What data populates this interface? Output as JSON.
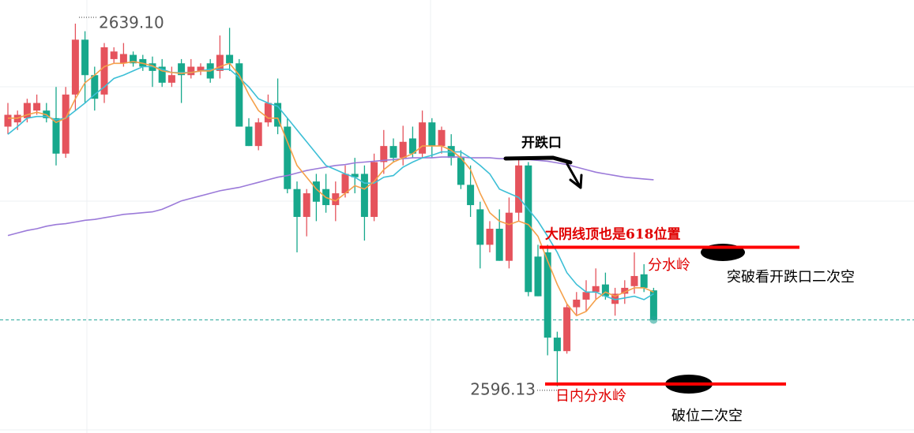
{
  "chart_data": {
    "type": "candlestick",
    "ylim": [
      2590.6,
      2641.9
    ],
    "up_color": "#e5535c",
    "down_color": "#17a88c",
    "open": [
      2626.9,
      2627.4,
      2627.9,
      2628.8,
      2628.8,
      2627.9,
      2623.7,
      2630.7,
      2637.2,
      2633.0,
      2630.7,
      2634.9,
      2634.4,
      2635.4,
      2634.9,
      2634.4,
      2634.0,
      2632.1,
      2634.4,
      2633.0,
      2633.5,
      2634.4,
      2633.5,
      2635.4,
      2634.4,
      2626.9,
      2624.6,
      2627.4,
      2629.7,
      2626.9,
      2619.5,
      2616.2,
      2620.4,
      2619.5,
      2617.6,
      2619.0,
      2621.3,
      2621.3,
      2616.2,
      2622.7,
      2624.6,
      2623.2,
      2625.5,
      2623.7,
      2627.4,
      2624.6,
      2624.6,
      2623.2,
      2620.0,
      2617.1,
      2612.9,
      2614.8,
      2611.0,
      2616.7,
      2622.3,
      2611.5,
      2612.0,
      2601.9,
      2600.3,
      2605.5,
      2606.4,
      2607.3,
      2608.2,
      2605.9,
      2607.1,
      2608.0,
      2609.4,
      2607.5
    ],
    "high": [
      2629.7,
      2628.8,
      2630.2,
      2630.7,
      2629.7,
      2631.6,
      2631.6,
      2639.1,
      2638.2,
      2634.0,
      2636.8,
      2636.3,
      2636.8,
      2635.8,
      2635.4,
      2635.2,
      2634.9,
      2634.0,
      2634.9,
      2634.9,
      2634.4,
      2634.9,
      2637.7,
      2638.6,
      2634.9,
      2627.9,
      2627.9,
      2630.7,
      2632.6,
      2627.9,
      2620.4,
      2619.5,
      2621.3,
      2621.3,
      2620.4,
      2622.3,
      2623.2,
      2622.3,
      2623.7,
      2626.5,
      2625.5,
      2627.0,
      2626.9,
      2628.8,
      2627.9,
      2626.9,
      2626.0,
      2624.1,
      2622.3,
      2618.0,
      2615.7,
      2617.1,
      2618.5,
      2623.2,
      2622.7,
      2612.9,
      2612.9,
      2602.6,
      2605.9,
      2607.3,
      2608.7,
      2610.1,
      2609.6,
      2607.8,
      2608.7,
      2612.0,
      2610.6,
      2607.8
    ],
    "low": [
      2626.0,
      2626.5,
      2627.4,
      2628.3,
      2627.4,
      2622.3,
      2623.2,
      2628.8,
      2629.7,
      2628.8,
      2629.7,
      2634.4,
      2634.0,
      2634.0,
      2633.5,
      2631.6,
      2631.6,
      2631.6,
      2629.7,
      2632.6,
      2633.0,
      2632.1,
      2632.6,
      2633.5,
      2626.9,
      2624.6,
      2624.1,
      2626.9,
      2626.0,
      2619.0,
      2612.0,
      2613.9,
      2615.7,
      2616.7,
      2615.7,
      2618.5,
      2619.0,
      2613.4,
      2615.7,
      2621.3,
      2622.7,
      2622.3,
      2623.2,
      2623.2,
      2623.2,
      2623.7,
      2622.3,
      2619.5,
      2616.2,
      2610.1,
      2612.0,
      2611.0,
      2610.1,
      2615.7,
      2606.8,
      2606.8,
      2599.8,
      2596.13,
      2600.0,
      2604.5,
      2605.0,
      2606.4,
      2606.4,
      2604.5,
      2605.9,
      2607.1,
      2607.3,
      2604.0
    ],
    "close": [
      2628.3,
      2628.3,
      2629.7,
      2629.7,
      2627.9,
      2623.7,
      2630.7,
      2637.2,
      2633.0,
      2630.2,
      2636.3,
      2635.8,
      2635.5,
      2634.4,
      2634.0,
      2633.5,
      2632.1,
      2633.0,
      2633.0,
      2634.0,
      2634.0,
      2632.6,
      2635.4,
      2634.4,
      2626.9,
      2624.6,
      2627.4,
      2629.7,
      2626.9,
      2619.5,
      2616.2,
      2619.0,
      2618.0,
      2617.6,
      2619.0,
      2621.3,
      2620.9,
      2616.2,
      2622.7,
      2624.6,
      2623.2,
      2625.1,
      2623.7,
      2627.4,
      2624.6,
      2626.5,
      2623.2,
      2620.0,
      2617.6,
      2612.9,
      2614.8,
      2611.0,
      2616.7,
      2622.3,
      2607.3,
      2606.8,
      2601.9,
      2600.3,
      2605.5,
      2606.4,
      2607.3,
      2608.0,
      2606.8,
      2607.1,
      2607.8,
      2609.2,
      2607.8,
      2604.0
    ],
    "lines": [
      {
        "color": "#9b7ad9",
        "values": [
          2614.0,
          2614.3,
          2614.6,
          2614.8,
          2615.1,
          2615.3,
          2615.4,
          2615.6,
          2615.8,
          2615.9,
          2616.1,
          2616.3,
          2616.5,
          2616.6,
          2616.7,
          2616.8,
          2617.1,
          2617.6,
          2618.1,
          2618.4,
          2618.7,
          2619.0,
          2619.3,
          2619.5,
          2619.7,
          2620.0,
          2620.3,
          2620.6,
          2620.9,
          2621.1,
          2621.4,
          2621.7,
          2621.9,
          2622.1,
          2622.3,
          2622.4,
          2622.6,
          2622.7,
          2622.8,
          2622.9,
          2623.0,
          2623.1,
          2623.2,
          2623.2,
          2623.2,
          2623.3,
          2623.3,
          2623.3,
          2623.2,
          2623.2,
          2623.2,
          2623.1,
          2623.1,
          2623.0,
          2623.0,
          2622.9,
          2622.8,
          2622.6,
          2622.4,
          2622.1,
          2621.8,
          2621.5,
          2621.3,
          2621.1,
          2620.9,
          2620.8,
          2620.7,
          2620.6
        ]
      },
      {
        "color": "#3dbfd6",
        "values": [
          2626.0,
          2626.9,
          2627.9,
          2628.1,
          2628.1,
          2627.7,
          2627.9,
          2628.8,
          2629.7,
          2630.7,
          2631.6,
          2632.6,
          2633.0,
          2633.5,
          2634.0,
          2634.0,
          2633.7,
          2633.3,
          2633.3,
          2633.3,
          2633.5,
          2633.7,
          2633.7,
          2633.7,
          2632.7,
          2631.6,
          2630.2,
          2629.7,
          2629.3,
          2627.9,
          2626.5,
          2625.1,
          2623.7,
          2622.3,
          2621.8,
          2621.3,
          2620.9,
          2620.2,
          2620.2,
          2620.9,
          2621.1,
          2622.1,
          2622.7,
          2623.2,
          2623.5,
          2623.9,
          2623.9,
          2623.9,
          2623.2,
          2622.3,
          2621.3,
          2619.5,
          2619.0,
          2618.5,
          2617.1,
          2615.7,
          2613.9,
          2612.0,
          2609.6,
          2608.2,
          2607.3,
          2607.3,
          2606.8,
          2606.4,
          2606.6,
          2606.8,
          2606.4,
          2607.1
        ]
      },
      {
        "color": "#f5a04a",
        "values": [
          2627.9,
          2627.9,
          2628.3,
          2628.6,
          2628.3,
          2627.4,
          2627.9,
          2630.2,
          2632.1,
          2633.0,
          2634.0,
          2634.4,
          2634.4,
          2634.6,
          2634.4,
          2634.1,
          2633.5,
          2633.3,
          2633.2,
          2633.3,
          2633.5,
          2633.5,
          2634.0,
          2634.4,
          2633.0,
          2630.7,
          2628.8,
          2627.9,
          2627.9,
          2625.1,
          2622.3,
          2620.9,
          2619.5,
          2618.5,
          2618.1,
          2619.0,
          2619.9,
          2619.5,
          2620.4,
          2621.8,
          2622.7,
          2623.2,
          2623.7,
          2624.6,
          2624.6,
          2624.6,
          2624.1,
          2623.2,
          2621.8,
          2619.0,
          2616.7,
          2615.7,
          2615.3,
          2615.7,
          2615.3,
          2613.9,
          2611.0,
          2608.2,
          2605.9,
          2604.5,
          2605.0,
          2606.4,
          2607.3,
          2606.8,
          2607.3,
          2607.8,
          2607.8,
          2607.3
        ]
      }
    ],
    "price_line": {
      "value": 2604.0,
      "color": "#26a69a"
    },
    "extremes": [
      {
        "value": 2639.1,
        "label": "2639.10"
      },
      {
        "value": 2596.13,
        "label": "2596.13"
      }
    ],
    "levels": [
      {
        "value": 2612.6,
        "color": "#ff0000"
      },
      {
        "value": 2596.4,
        "color": "#ff0000"
      }
    ],
    "annotations": [
      {
        "text": "开跌口",
        "color": "#000000"
      },
      {
        "text": "大阴线顶也是618位置",
        "color": "#e00000"
      },
      {
        "text": "分水岭",
        "color": "#e00000"
      },
      {
        "text": "突破看开跌口二次空",
        "color": "#000000"
      },
      {
        "text": "日内分水岭",
        "color": "#e00000"
      },
      {
        "text": "破位二次空",
        "color": "#000000"
      }
    ]
  }
}
